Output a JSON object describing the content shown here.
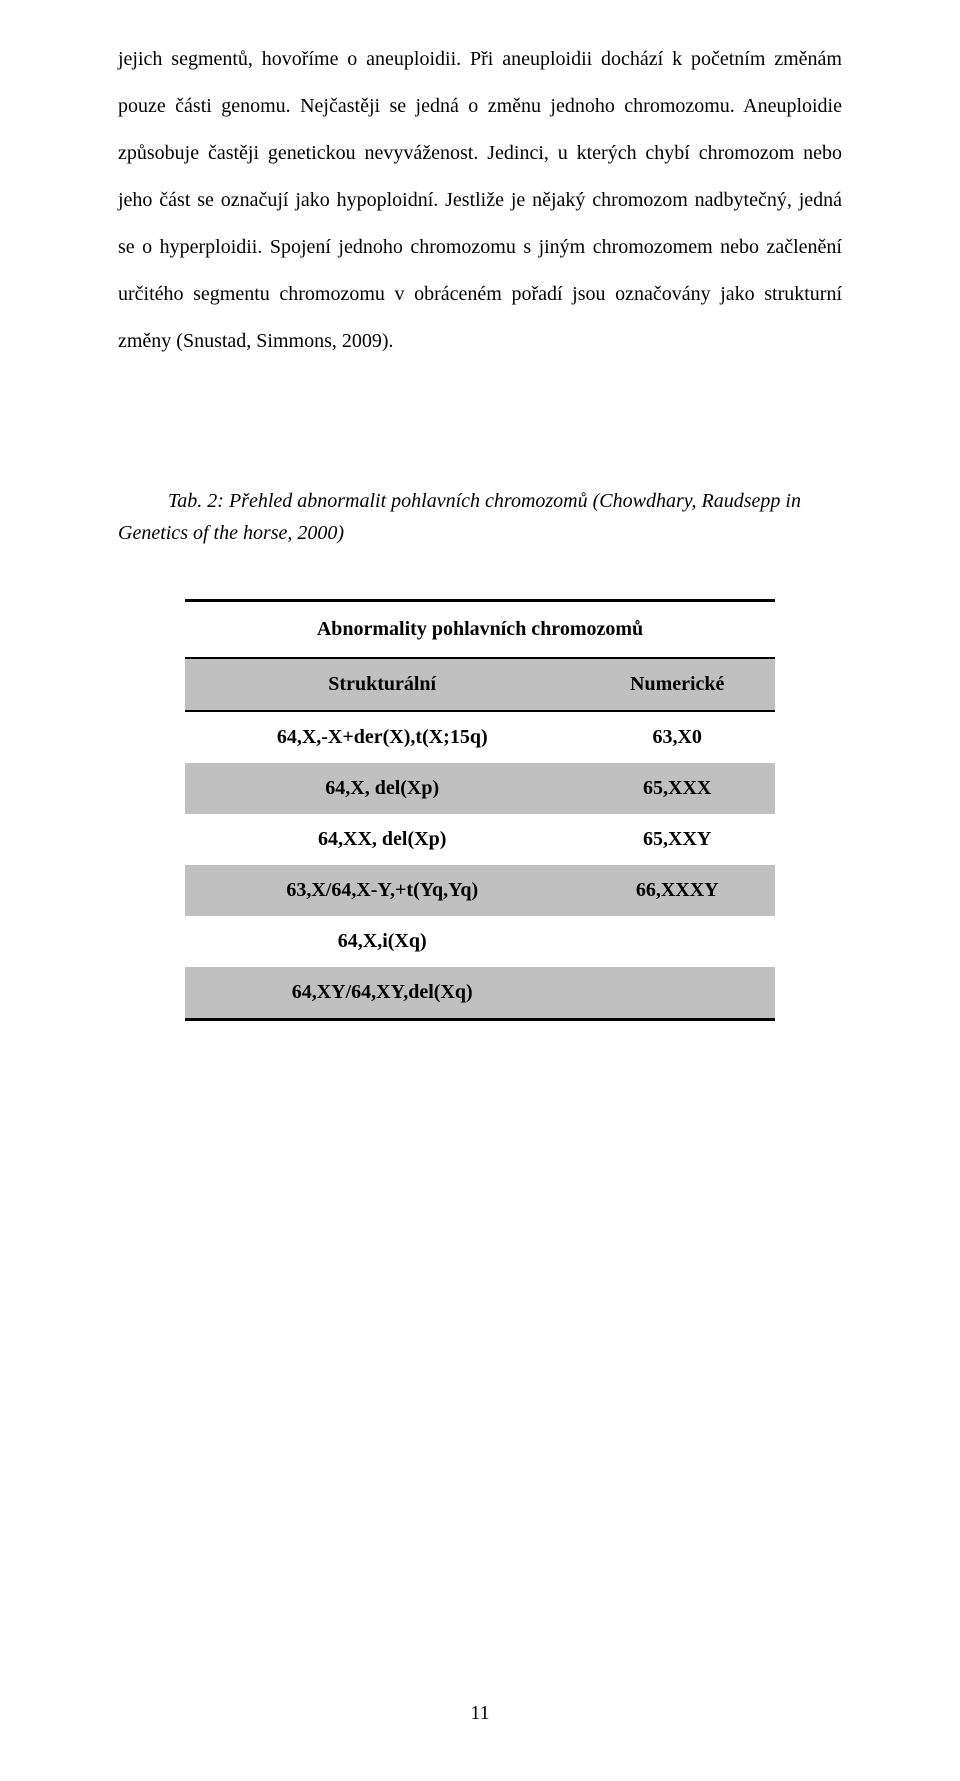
{
  "paragraphs": {
    "p1": "jejich segmentů, hovoříme o aneuploidii. Při aneuploidii dochází k početním změnám pouze části genomu. Nejčastěji se jedná o změnu jednoho chromozomu. Aneuploidie způsobuje častěji genetickou nevyváženost. Jedinci, u kterých chybí chromozom nebo jeho část se označují jako hypoploidní. Jestliže je nějaký chromozom nadbytečný, jedná se o hyperploidii. Spojení jednoho chromozomu s jiným chromozomem nebo začlenění určitého segmentu chromozomu v obráceném pořadí jsou označovány jako strukturní změny (Snustad, Simmons, 2009)."
  },
  "caption": "Tab. 2: Přehled abnormalit pohlavních chromozomů (Chowdhary, Raudsepp in Genetics of the horse, 2000)",
  "table": {
    "title": "Abnormality pohlavních chromozomů",
    "headers": {
      "col1": "Strukturální",
      "col2": "Numerické"
    },
    "rows": [
      {
        "c1": "64,X,-X+der(X),t(X;15q)",
        "c2": "63,X0",
        "shaded": false
      },
      {
        "c1": "64,X, del(Xp)",
        "c2": "65,XXX",
        "shaded": true
      },
      {
        "c1": "64,XX, del(Xp)",
        "c2": "65,XXY",
        "shaded": false
      },
      {
        "c1": "63,X/64,X-Y,+t(Yq,Yq)",
        "c2": "66,XXXY",
        "shaded": true
      },
      {
        "c1": "64,X,i(Xq)",
        "c2": "",
        "shaded": false
      },
      {
        "c1": "64,XY/64,XY,del(Xq)",
        "c2": "",
        "shaded": true
      }
    ]
  },
  "page_number": "11",
  "colors": {
    "bg": "#ffffff",
    "text": "#000000",
    "shade": "#c0c0c0"
  }
}
